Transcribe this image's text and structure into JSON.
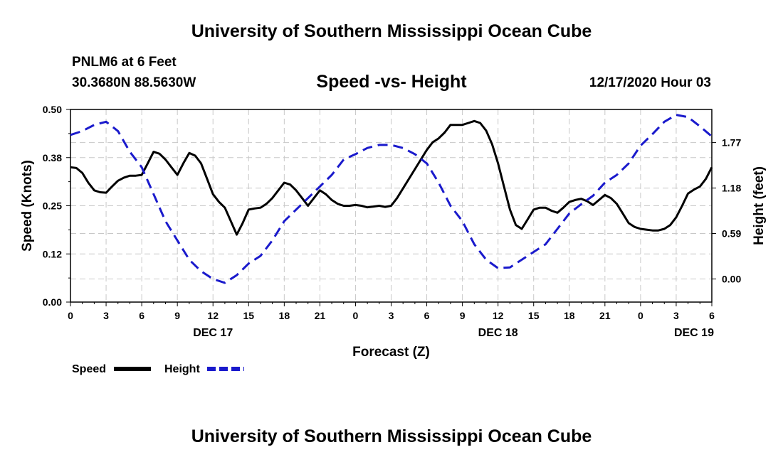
{
  "header": {
    "title": "University of Southern Mississippi Ocean Cube",
    "station": "PNLM6 at 6 Feet",
    "coords": "30.3680N 88.5630W",
    "chart_title": "Speed -vs- Height",
    "timestamp": "12/17/2020 Hour 03"
  },
  "footer": {
    "title": "University of Southern Mississippi Ocean Cube"
  },
  "colors": {
    "speed": "#000000",
    "height": "#1a1acc",
    "grid": "#c8c8c8"
  },
  "chart_data": {
    "type": "line",
    "title": "Speed -vs- Height",
    "xlabel": "Forecast (Z)",
    "ylabel": "Speed (Knots)",
    "y2label": "Height (feet)",
    "xlim": [
      0,
      54
    ],
    "ylim": [
      0,
      0.5
    ],
    "y2lim": [
      -0.3,
      2.2
    ],
    "y_ticks": [
      0,
      0.125,
      0.25,
      0.375,
      0.5
    ],
    "y_tick_labels": [
      "0.00",
      "0.12",
      "0.25",
      "0.38",
      "0.50"
    ],
    "y2_ticks": [
      0,
      0.59,
      1.18,
      1.77
    ],
    "y2_tick_labels": [
      "0.00",
      "0.59",
      "1.18",
      "1.77"
    ],
    "x_ticks": [
      0,
      3,
      6,
      9,
      12,
      15,
      18,
      21,
      24,
      27,
      30,
      33,
      36,
      39,
      42,
      45,
      48,
      51,
      54
    ],
    "x_tick_labels": [
      "0",
      "3",
      "6",
      "9",
      "12",
      "15",
      "18",
      "21",
      "0",
      "3",
      "6",
      "9",
      "12",
      "15",
      "18",
      "21",
      "0",
      "3",
      "6"
    ],
    "date_labels": [
      {
        "x": 12,
        "label": "DEC 17"
      },
      {
        "x": 36,
        "label": "DEC 18"
      },
      {
        "x": 52.5,
        "label": "DEC 19"
      }
    ],
    "legend": [
      {
        "name": "Speed",
        "style": "solid"
      },
      {
        "name": "Height",
        "style": "dashed"
      }
    ],
    "series": [
      {
        "name": "Speed",
        "axis": "left",
        "x": [
          0,
          0.5,
          1,
          1.5,
          2,
          2.5,
          3,
          3.5,
          4,
          4.5,
          5,
          5.5,
          6,
          6.5,
          7,
          7.5,
          8,
          8.5,
          9,
          9.5,
          10,
          10.5,
          11,
          11.5,
          12,
          12.5,
          13,
          13.5,
          14,
          14.5,
          15,
          15.5,
          16,
          16.5,
          17,
          17.5,
          18,
          18.5,
          19,
          19.5,
          20,
          20.5,
          21,
          21.5,
          22,
          22.5,
          23,
          23.5,
          24,
          24.5,
          25,
          25.5,
          26,
          26.5,
          27,
          27.5,
          28,
          28.5,
          29,
          29.5,
          30,
          30.5,
          31,
          31.5,
          32,
          32.5,
          33,
          33.5,
          34,
          34.5,
          35,
          35.5,
          36,
          36.5,
          37,
          37.5,
          38,
          38.5,
          39,
          39.5,
          40,
          40.5,
          41,
          41.5,
          42,
          42.5,
          43,
          43.5,
          44,
          44.5,
          45,
          45.5,
          46,
          46.5,
          47,
          47.5,
          48,
          48.5,
          49,
          49.5,
          50,
          50.5,
          51,
          51.5,
          52,
          52.5,
          53,
          53.5,
          54
        ],
        "values": [
          0.35,
          0.348,
          0.335,
          0.31,
          0.29,
          0.285,
          0.284,
          0.3,
          0.315,
          0.323,
          0.328,
          0.328,
          0.33,
          0.36,
          0.39,
          0.385,
          0.37,
          0.35,
          0.33,
          0.36,
          0.387,
          0.38,
          0.36,
          0.32,
          0.28,
          0.26,
          0.245,
          0.21,
          0.175,
          0.205,
          0.24,
          0.243,
          0.245,
          0.255,
          0.27,
          0.29,
          0.31,
          0.305,
          0.29,
          0.27,
          0.25,
          0.27,
          0.29,
          0.28,
          0.265,
          0.255,
          0.25,
          0.25,
          0.252,
          0.25,
          0.246,
          0.248,
          0.25,
          0.247,
          0.25,
          0.27,
          0.295,
          0.32,
          0.345,
          0.37,
          0.395,
          0.415,
          0.425,
          0.44,
          0.46,
          0.46,
          0.46,
          0.465,
          0.47,
          0.465,
          0.445,
          0.41,
          0.36,
          0.3,
          0.24,
          0.2,
          0.19,
          0.215,
          0.24,
          0.245,
          0.245,
          0.237,
          0.232,
          0.245,
          0.26,
          0.265,
          0.268,
          0.262,
          0.252,
          0.265,
          0.278,
          0.27,
          0.255,
          0.23,
          0.205,
          0.195,
          0.19,
          0.188,
          0.186,
          0.186,
          0.19,
          0.2,
          0.22,
          0.25,
          0.282,
          0.292,
          0.3,
          0.32,
          0.35
        ]
      },
      {
        "name": "Height",
        "axis": "right",
        "x": [
          0,
          1,
          2,
          3,
          4,
          5,
          6,
          7,
          8,
          9,
          10,
          11,
          12,
          13,
          14,
          15,
          16,
          17,
          18,
          19,
          20,
          21,
          22,
          23,
          24,
          25,
          26,
          27,
          28,
          29,
          30,
          31,
          32,
          33,
          34,
          35,
          36,
          37,
          38,
          39,
          40,
          41,
          42,
          43,
          44,
          45,
          46,
          47,
          48,
          49,
          50,
          51,
          52,
          53,
          54
        ],
        "values": [
          1.87,
          1.92,
          2.0,
          2.04,
          1.92,
          1.65,
          1.45,
          1.1,
          0.75,
          0.5,
          0.25,
          0.1,
          0.0,
          -0.05,
          0.05,
          0.2,
          0.3,
          0.5,
          0.75,
          0.9,
          1.05,
          1.2,
          1.35,
          1.55,
          1.62,
          1.7,
          1.74,
          1.74,
          1.7,
          1.62,
          1.5,
          1.25,
          0.95,
          0.75,
          0.45,
          0.25,
          0.14,
          0.15,
          0.25,
          0.35,
          0.45,
          0.65,
          0.85,
          0.97,
          1.08,
          1.25,
          1.35,
          1.5,
          1.73,
          1.88,
          2.04,
          2.13,
          2.1,
          1.98,
          1.85
        ]
      }
    ]
  }
}
